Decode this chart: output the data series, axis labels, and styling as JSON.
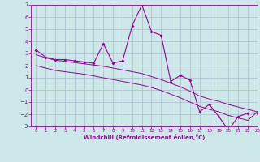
{
  "x": [
    0,
    1,
    2,
    3,
    4,
    5,
    6,
    7,
    8,
    9,
    10,
    11,
    12,
    13,
    14,
    15,
    16,
    17,
    18,
    19,
    20,
    21,
    22,
    23
  ],
  "y": [
    3.3,
    2.7,
    2.5,
    2.5,
    2.4,
    2.3,
    2.2,
    3.8,
    2.2,
    2.4,
    5.3,
    7.0,
    4.8,
    4.5,
    0.7,
    1.2,
    0.8,
    -1.8,
    -1.2,
    -2.2,
    -3.3,
    -2.2,
    -1.9,
    -1.9
  ],
  "trend_upper": [
    2.9,
    2.65,
    2.45,
    2.35,
    2.25,
    2.15,
    2.05,
    1.95,
    1.8,
    1.65,
    1.5,
    1.35,
    1.1,
    0.85,
    0.55,
    0.25,
    -0.1,
    -0.5,
    -0.75,
    -0.95,
    -1.2,
    -1.4,
    -1.6,
    -1.8
  ],
  "trend_lower": [
    2.0,
    1.8,
    1.6,
    1.5,
    1.4,
    1.3,
    1.15,
    1.0,
    0.85,
    0.7,
    0.55,
    0.4,
    0.2,
    -0.05,
    -0.35,
    -0.65,
    -1.0,
    -1.35,
    -1.6,
    -1.8,
    -2.1,
    -2.3,
    -2.5,
    -1.8
  ],
  "color": "#990099",
  "bg_color": "#cce8e8",
  "grid_color": "#aabbcc",
  "xlabel": "Windchill (Refroidissement éolien,°C)",
  "xlim": [
    -0.5,
    23
  ],
  "ylim": [
    -3,
    7
  ],
  "xticks": [
    0,
    1,
    2,
    3,
    4,
    5,
    6,
    7,
    8,
    9,
    10,
    11,
    12,
    13,
    14,
    15,
    16,
    17,
    18,
    19,
    20,
    21,
    22,
    23
  ],
  "yticks": [
    -3,
    -2,
    -1,
    0,
    1,
    2,
    3,
    4,
    5,
    6,
    7
  ]
}
